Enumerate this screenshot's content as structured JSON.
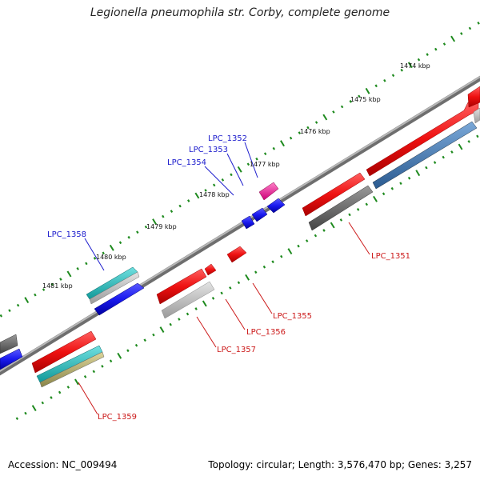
{
  "title": "Legionella pneumophila str. Corby, complete genome",
  "footer": {
    "accession": "Accession: NC_009494",
    "summary": "Topology: circular; Length: 3,576,470 bp; Genes: 3,257"
  },
  "colors": {
    "backbone": "#8a8a8a",
    "tick": "#1e8a1e",
    "forward_label": "#1a1acc",
    "reverse_label": "#cc1a1a",
    "red_gene": "#ee1111",
    "blue_gene": "#1a1aee",
    "magenta_gene": "#ee2299",
    "gray_gene": "#666666",
    "light_gray_gene": "#bbbbbb",
    "steel_gene": "#4a80b8",
    "cyan_gene": "#22bbbb",
    "tan_gene": "#b8b070"
  },
  "kbp_ticks": [
    "1474 kbp",
    "1475 kbp",
    "1476 kbp",
    "1477 kbp",
    "1478 kbp",
    "1479 kbp",
    "1480 kbp",
    "1481 kbp"
  ],
  "gene_labels": [
    {
      "text": "LPC_1352",
      "strand": "forward"
    },
    {
      "text": "LPC_1353",
      "strand": "forward"
    },
    {
      "text": "LPC_1354",
      "strand": "forward"
    },
    {
      "text": "LPC_1358",
      "strand": "forward"
    },
    {
      "text": "LPC_1351",
      "strand": "reverse"
    },
    {
      "text": "LPC_1355",
      "strand": "reverse"
    },
    {
      "text": "LPC_1356",
      "strand": "reverse"
    },
    {
      "text": "LPC_1357",
      "strand": "reverse"
    },
    {
      "text": "LPC_1359",
      "strand": "reverse"
    }
  ]
}
